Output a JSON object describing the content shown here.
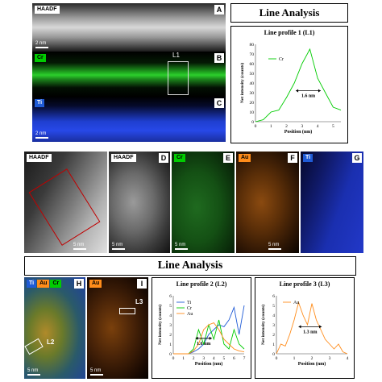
{
  "section_top": {
    "title": "Line Analysis",
    "panel_a": {
      "label": "HAADF",
      "letter": "A",
      "scale": "2 nm"
    },
    "panel_b": {
      "label": "Cr",
      "letter": "B",
      "scale": "2 nm",
      "line": "L1"
    },
    "panel_c": {
      "label": "Ti",
      "letter": "C",
      "scale": "2 nm"
    }
  },
  "section_middle": {
    "panel_haadf_overview": {
      "label": "HAADF",
      "scale": "5 nm"
    },
    "panel_d": {
      "label": "HAADF",
      "letter": "D",
      "scale": "5 nm"
    },
    "panel_e": {
      "label": "Cr",
      "letter": "E",
      "scale": "5 nm"
    },
    "panel_f": {
      "label": "Au",
      "letter": "F",
      "scale": "5 nm"
    },
    "panel_g": {
      "label": "Ti",
      "letter": "G",
      "scale": "5 nm"
    }
  },
  "section_bottom": {
    "title": "Line Analysis",
    "panel_h": {
      "labels": [
        "Ti",
        "Au",
        "Cr"
      ],
      "letter": "H",
      "scale": "5 nm",
      "line": "L2"
    },
    "panel_i": {
      "label": "Au",
      "letter": "I",
      "scale": "5 nm",
      "line": "L3"
    }
  },
  "colors": {
    "cr": "#00cc00",
    "ti": "#1f5bd6",
    "au": "#ff8c1a",
    "box": "#c00000"
  },
  "chart_data": [
    {
      "type": "line",
      "title": "Line profile 1 (L1)",
      "xlabel": "Position (nm)",
      "ylabel": "Net intensity (counts)",
      "xlim": [
        0,
        5.5
      ],
      "ylim": [
        0,
        80
      ],
      "xticks": [
        "0",
        "1",
        "2",
        "3",
        "4",
        "5"
      ],
      "yticks": [
        "0",
        "10",
        "20",
        "30",
        "40",
        "50",
        "60",
        "70",
        "80"
      ],
      "annotation": "1.6 nm",
      "series": [
        {
          "name": "Cr",
          "color": "#00cc00",
          "x": [
            0,
            0.5,
            1,
            1.5,
            2,
            2.5,
            3,
            3.5,
            4,
            4.5,
            5,
            5.5
          ],
          "y": [
            0,
            2,
            10,
            12,
            25,
            40,
            60,
            75,
            45,
            30,
            15,
            12
          ]
        }
      ]
    },
    {
      "type": "line",
      "title": "Line profile 2 (L2)",
      "xlabel": "Position (nm)",
      "ylabel": "Net intensity (counts)",
      "xlim": [
        0,
        7
      ],
      "ylim": [
        0,
        6
      ],
      "xticks": [
        "0",
        "1",
        "2",
        "3",
        "4",
        "5",
        "6",
        "7"
      ],
      "yticks": [
        "0",
        "1",
        "2",
        "3",
        "4",
        "5",
        "6"
      ],
      "annotation": "1.6 nm",
      "series": [
        {
          "name": "Ti",
          "color": "#1f5bd6",
          "x": [
            0,
            0.5,
            1,
            1.5,
            2,
            2.5,
            3,
            3.5,
            4,
            4.5,
            5,
            5.5,
            6,
            6.5,
            7
          ],
          "y": [
            0,
            0,
            0,
            0,
            0.2,
            0.5,
            1,
            2,
            2.5,
            3,
            2.8,
            3.5,
            4.8,
            2,
            5
          ]
        },
        {
          "name": "Cr",
          "color": "#00cc00",
          "x": [
            0,
            0.5,
            1,
            1.5,
            2,
            2.5,
            3,
            3.5,
            4,
            4.5,
            5,
            5.5,
            6,
            6.5,
            7
          ],
          "y": [
            0,
            0,
            0,
            0,
            0.5,
            2.5,
            1,
            3,
            1.5,
            3.5,
            1,
            0.5,
            2.5,
            1,
            0.5
          ]
        },
        {
          "name": "Au",
          "color": "#ff8c1a",
          "x": [
            0,
            0.5,
            1,
            1.5,
            2,
            2.5,
            3,
            3.5,
            4,
            4.5,
            5,
            5.5,
            6,
            6.5,
            7
          ],
          "y": [
            0,
            0,
            0,
            0,
            0.3,
            1,
            2.5,
            3,
            3.2,
            2.5,
            1.5,
            1,
            0.5,
            0.3,
            0.2
          ]
        }
      ]
    },
    {
      "type": "line",
      "title": "Line profile 3 (L3)",
      "xlabel": "Position (nm)",
      "ylabel": "Net intensity (counts)",
      "xlim": [
        0,
        4
      ],
      "ylim": [
        0,
        6
      ],
      "xticks": [
        "0",
        "1",
        "2",
        "3",
        "4"
      ],
      "yticks": [
        "0",
        "1",
        "2",
        "3",
        "4",
        "5",
        "6"
      ],
      "annotation": "1.3 nm",
      "series": [
        {
          "name": "Au",
          "color": "#ff8c1a",
          "x": [
            0,
            0.25,
            0.5,
            0.75,
            1,
            1.25,
            1.5,
            1.75,
            2,
            2.25,
            2.5,
            2.75,
            3,
            3.25,
            3.5,
            3.75,
            4
          ],
          "y": [
            0,
            1,
            0.8,
            2,
            3.5,
            5.3,
            4,
            3,
            5.2,
            3.5,
            2.5,
            1.5,
            1,
            0.5,
            1,
            0.2,
            0
          ]
        }
      ]
    }
  ]
}
